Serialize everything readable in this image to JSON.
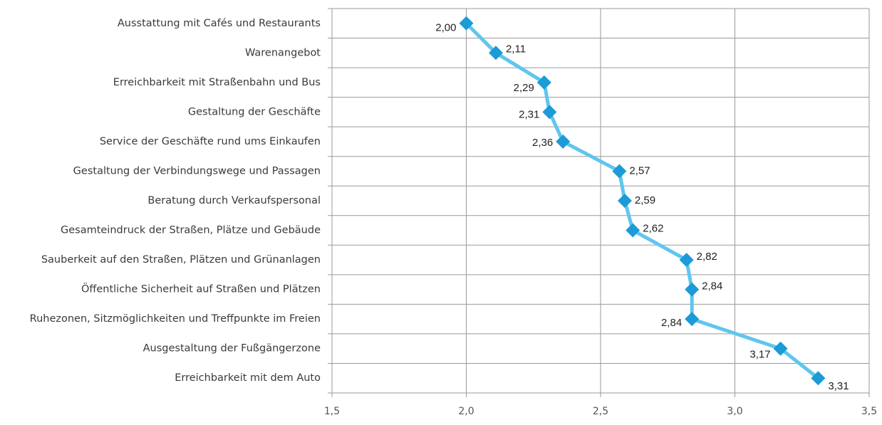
{
  "chart_data": {
    "type": "line",
    "categories": [
      "Ausstattung mit Cafés und Restaurants",
      "Warenangebot",
      "Erreichbarkeit mit Straßenbahn und Bus",
      "Gestaltung der Geschäfte",
      "Service der Geschäfte rund ums Einkaufen",
      "Gestaltung der Verbindungswege und Passagen",
      "Beratung durch Verkaufspersonal",
      "Gesamteindruck der Straßen, Plätze und Gebäude",
      "Sauberkeit auf den Straßen, Plätzen und Grünanlagen",
      "Öffentliche Sicherheit auf Straßen und Plätzen",
      "Ruhezonen, Sitzmöglichkeiten und Treffpunkte im Freien",
      "Ausgestaltung der Fußgängerzone",
      "Erreichbarkeit mit dem Auto"
    ],
    "values": [
      2.0,
      2.11,
      2.29,
      2.31,
      2.36,
      2.57,
      2.59,
      2.62,
      2.82,
      2.84,
      2.84,
      3.17,
      3.31
    ],
    "value_labels": [
      "2,00",
      "2,11",
      "2,29",
      "2,31",
      "2,36",
      "2,57",
      "2,59",
      "2,62",
      "2,82",
      "2,84",
      "2,84",
      "3,17",
      "3,31"
    ],
    "line_color": "#5fc6ee",
    "marker_color": "#1b9bd7",
    "xlim": [
      1.5,
      3.5
    ],
    "xticks": [
      {
        "value": 1.5,
        "label": "1,5"
      },
      {
        "value": 2.0,
        "label": "2,0"
      },
      {
        "value": 2.5,
        "label": "2,5"
      },
      {
        "value": 3.0,
        "label": "3,0"
      },
      {
        "value": 3.5,
        "label": "3,5"
      }
    ],
    "grid": true
  }
}
